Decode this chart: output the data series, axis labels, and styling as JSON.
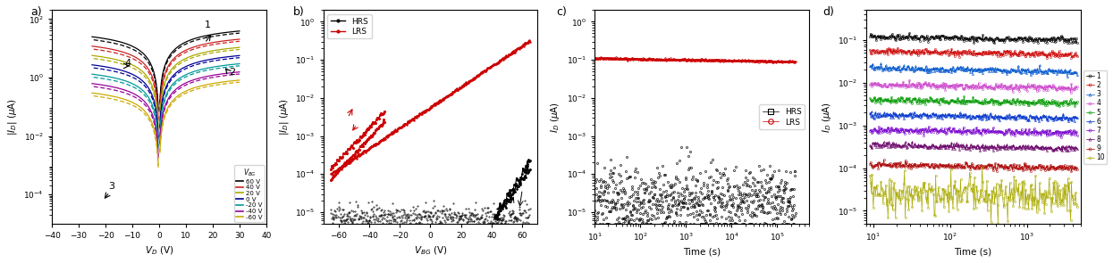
{
  "panel_a": {
    "xlabel": "V_D (V)",
    "ylabel": "|I_D| (uA)",
    "xlim": [
      -40,
      40
    ],
    "ylim": [
      1e-05,
      200
    ],
    "vbg_labels": [
      "60 V",
      "40 V",
      "20 V",
      "0 V",
      "-20 V",
      "-40 V",
      "-60 V"
    ],
    "vbg_colors": [
      "#000000",
      "#cc2222",
      "#aaaa00",
      "#000099",
      "#009999",
      "#990099",
      "#ccaa00"
    ],
    "yticks": [
      0.0001,
      0.01,
      1.0,
      100.0
    ]
  },
  "panel_b": {
    "xlabel": "V_BG (V)",
    "ylabel": "|I_D| (uA)",
    "xlim": [
      -70,
      70
    ],
    "ylim": [
      5e-06,
      2
    ],
    "labels": [
      "HRS",
      "LRS"
    ],
    "colors_b": [
      "#000000",
      "#cc0000"
    ],
    "yticks": [
      1e-05,
      0.0001,
      0.001,
      0.01,
      0.1,
      1.0
    ]
  },
  "panel_c": {
    "xlabel": "Time (s)",
    "ylabel": "I_D (uA)",
    "xlim": [
      10,
      500000
    ],
    "ylim": [
      5e-06,
      2
    ],
    "labels": [
      "HRS",
      "LRS"
    ],
    "colors_c": [
      "#000000",
      "#cc0000"
    ]
  },
  "panel_d": {
    "xlabel": "Time (s)",
    "ylabel": "I_D (uA)",
    "xlim": [
      8,
      5000
    ],
    "ylim": [
      5e-06,
      0.5
    ],
    "n_states": 10,
    "state_colors": [
      "#000000",
      "#cc0000",
      "#0000cc",
      "#cc00cc",
      "#009900",
      "#0000cc",
      "#9900cc",
      "#990000",
      "#cc0099",
      "#aaaa00"
    ],
    "state_base_currents": [
      0.12,
      0.055,
      0.022,
      0.009,
      0.004,
      0.0018,
      0.0008,
      0.00035,
      0.00012,
      2.5e-05
    ]
  }
}
